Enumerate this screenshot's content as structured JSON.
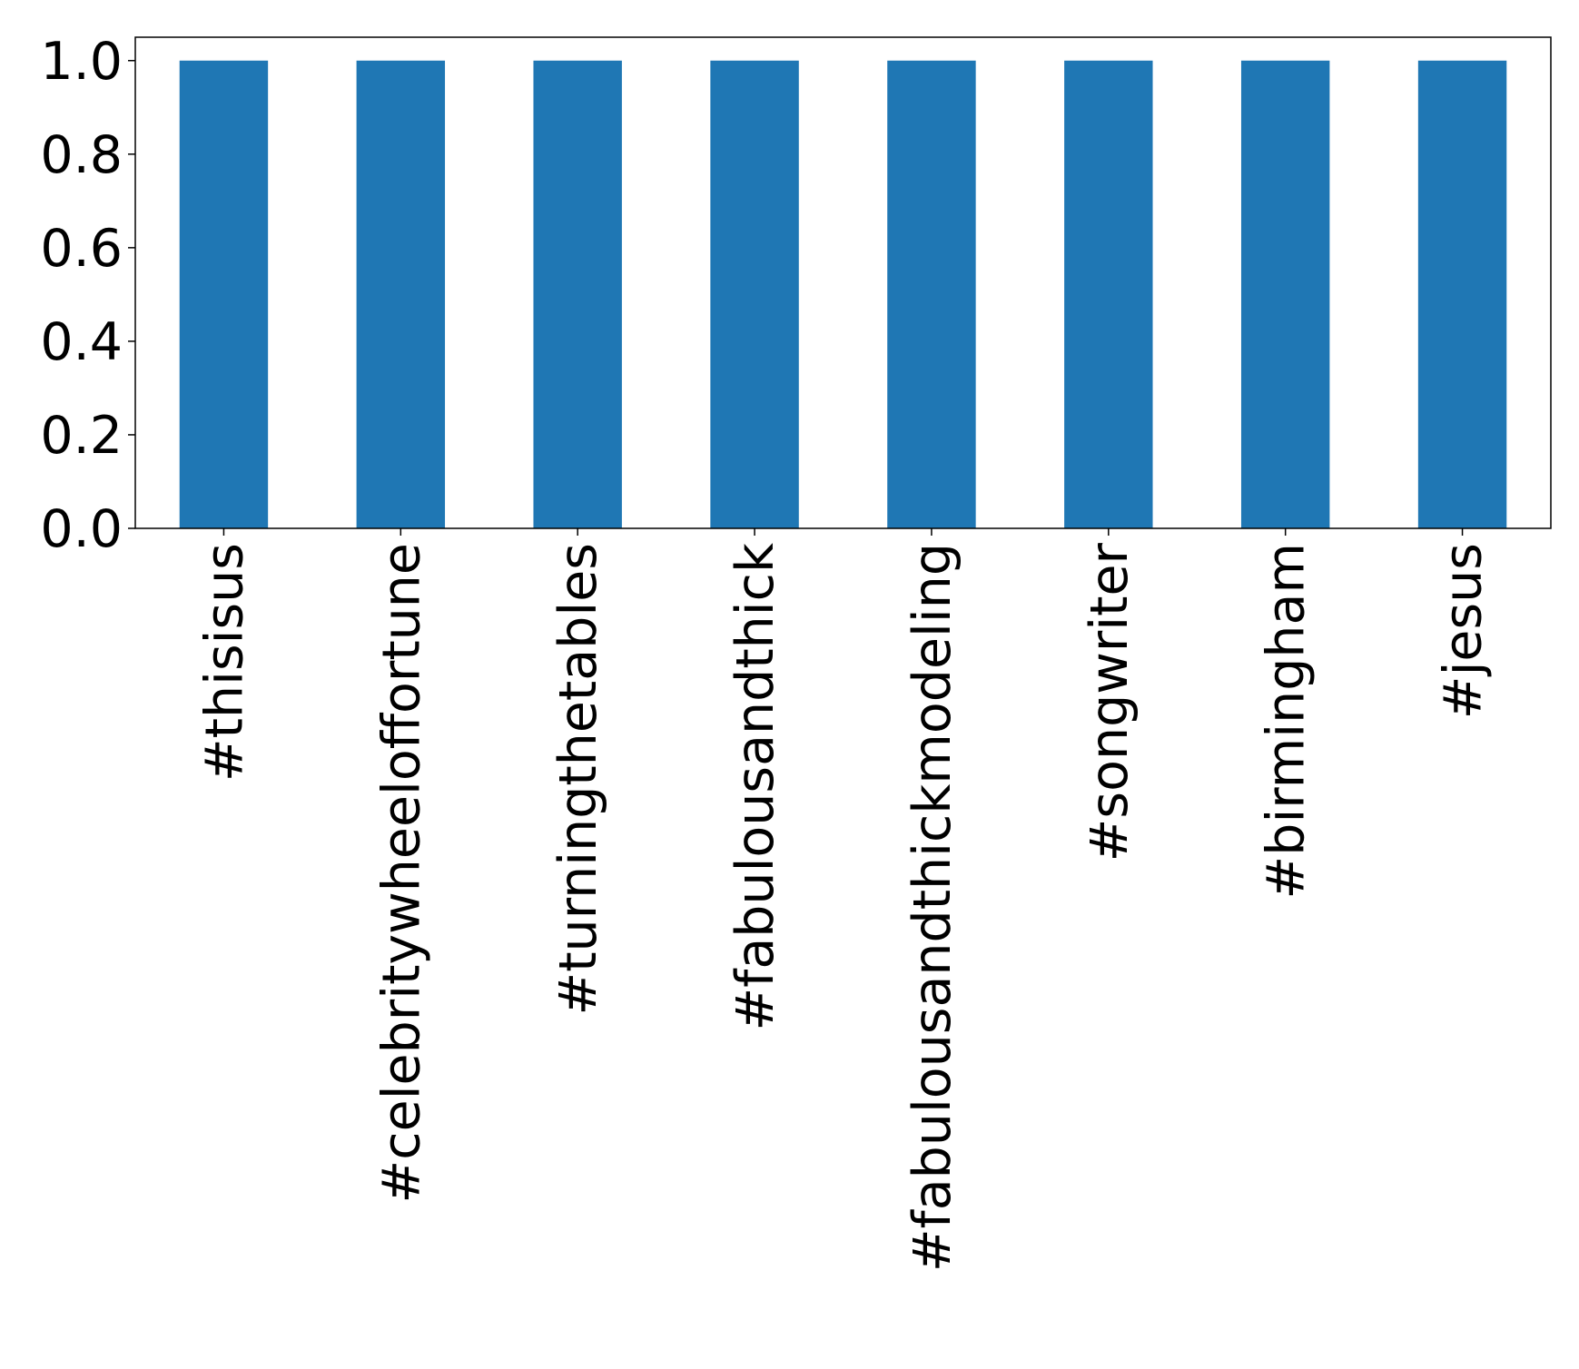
{
  "chart_data": {
    "type": "bar",
    "categories": [
      "#thisisus",
      "#celebritywheeloffortune",
      "#turningthetables",
      "#fabulousandthick",
      "#fabulousandthickmodeling",
      "#songwriter",
      "#birmingham",
      "#jesus"
    ],
    "values": [
      1,
      1,
      1,
      1,
      1,
      1,
      1,
      1
    ],
    "color": "#1f77b4",
    "ylim": [
      0,
      1.05
    ],
    "yticks": [
      {
        "value": 0,
        "label": "0.0"
      },
      {
        "value": 0.2,
        "label": "0.2"
      },
      {
        "value": 0.4,
        "label": "0.4"
      },
      {
        "value": 0.6,
        "label": "0.6"
      },
      {
        "value": 0.8,
        "label": "0.8"
      },
      {
        "value": 1,
        "label": "1.0"
      }
    ],
    "grid": false
  }
}
